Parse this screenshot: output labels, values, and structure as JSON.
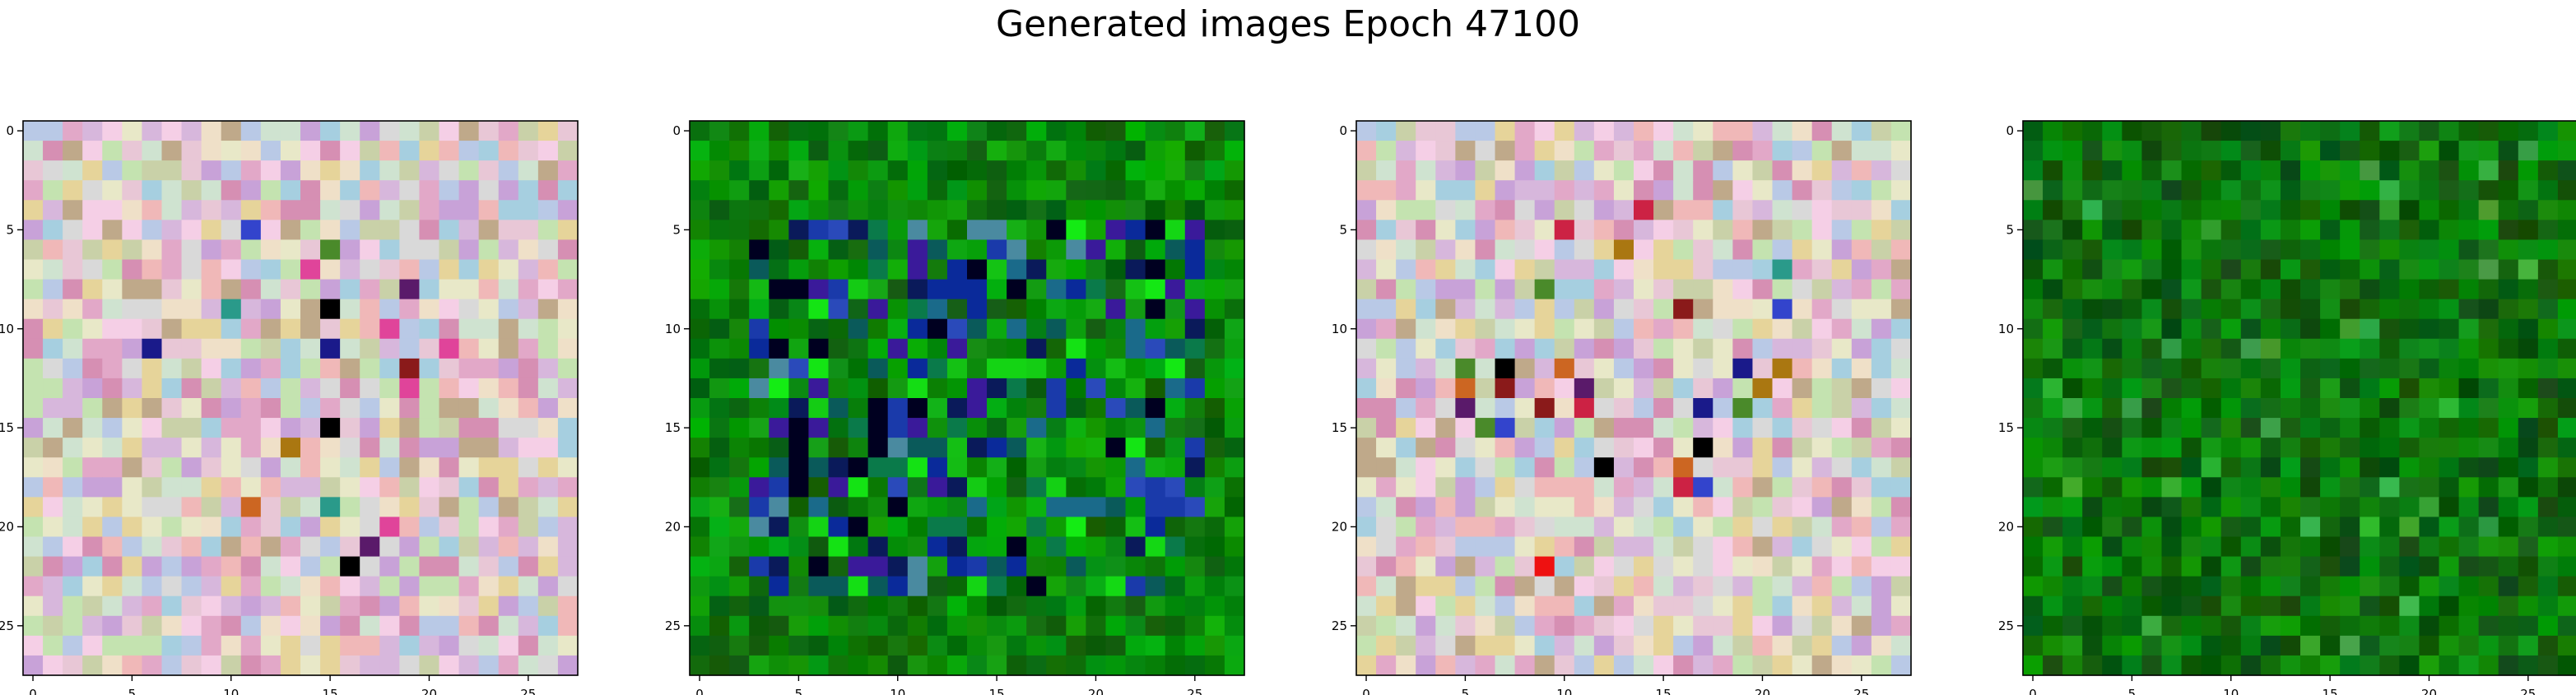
{
  "title": "Generated images Epoch 47100",
  "chart_data": {
    "type": "heatmap",
    "title": "Generated images Epoch 47100",
    "grid_size": 28,
    "xlim": [
      -0.5,
      27.5
    ],
    "ylim": [
      27.5,
      -0.5
    ],
    "x_ticks": [
      0,
      5,
      10,
      15,
      20,
      25
    ],
    "y_ticks": [
      0,
      5,
      10,
      15,
      20,
      25
    ],
    "tick_labels": [
      "0",
      "5",
      "10",
      "15",
      "20",
      "25"
    ],
    "panels": [
      {
        "name": "",
        "style": "pastel",
        "seed": 11
      },
      {
        "name": "",
        "style": "green-blue",
        "seed": 23
      },
      {
        "name": "",
        "style": "pastel",
        "seed": 37
      },
      {
        "name": "",
        "style": "green",
        "seed": 53
      }
    ]
  }
}
